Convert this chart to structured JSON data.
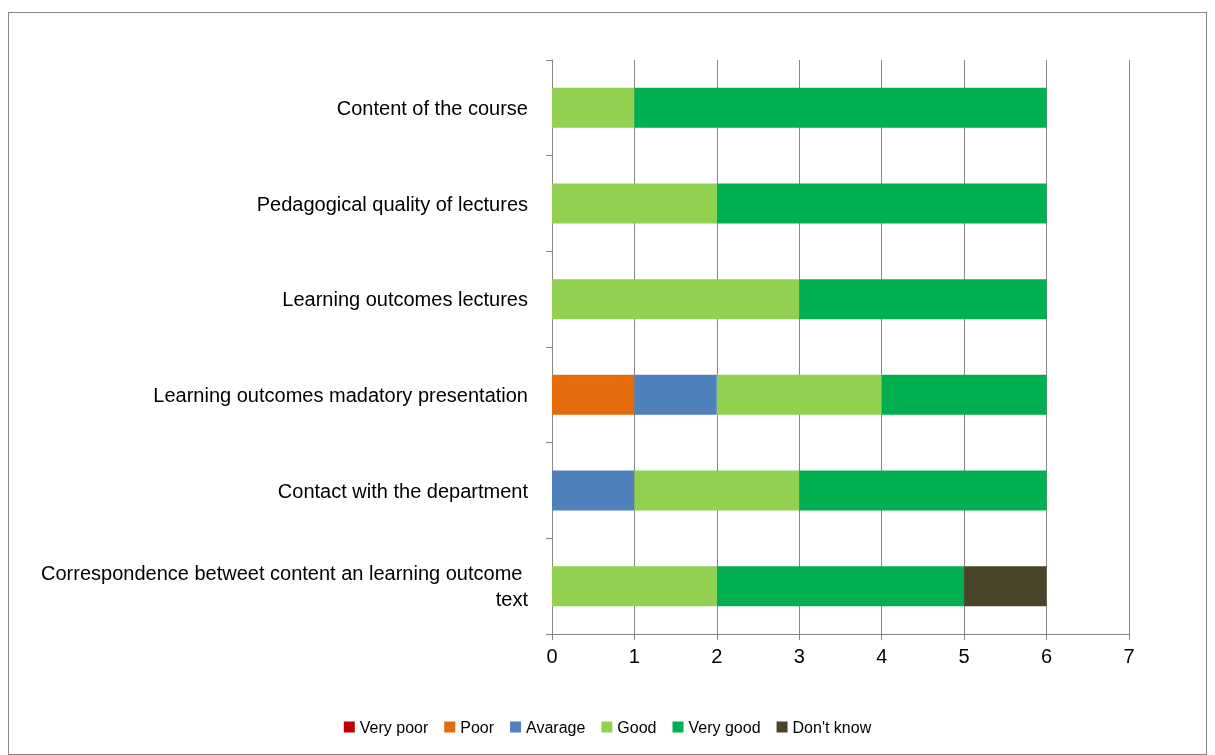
{
  "chart_data": {
    "type": "bar",
    "orientation": "horizontal",
    "stacked": true,
    "categories": [
      "Content of the course",
      "Pedagogical quality of lectures",
      "Learning outcomes lectures",
      "Learning outcomes madatory presentation",
      "Contact with the department",
      "Correspondence betweet content an learning outcome text"
    ],
    "series": [
      {
        "name": "Very poor",
        "color": "#c00000",
        "values": [
          0,
          0,
          0,
          0,
          0,
          0
        ]
      },
      {
        "name": "Poor",
        "color": "#e46c0a",
        "values": [
          0,
          0,
          0,
          1,
          0,
          0
        ]
      },
      {
        "name": "Avarage",
        "color": "#4f81bd",
        "values": [
          0,
          0,
          0,
          1,
          1,
          0
        ]
      },
      {
        "name": "Good",
        "color": "#92d050",
        "values": [
          1,
          2,
          3,
          2,
          2,
          2
        ]
      },
      {
        "name": "Very good",
        "color": "#00b050",
        "values": [
          5,
          4,
          3,
          2,
          3,
          3
        ]
      },
      {
        "name": "Don't know",
        "color": "#4a452a",
        "values": [
          0,
          0,
          0,
          0,
          0,
          1
        ]
      }
    ],
    "xlim": [
      0,
      7
    ],
    "xticks": [
      0,
      1,
      2,
      3,
      4,
      5,
      6,
      7
    ],
    "grid": "x",
    "legend": "bottom"
  }
}
